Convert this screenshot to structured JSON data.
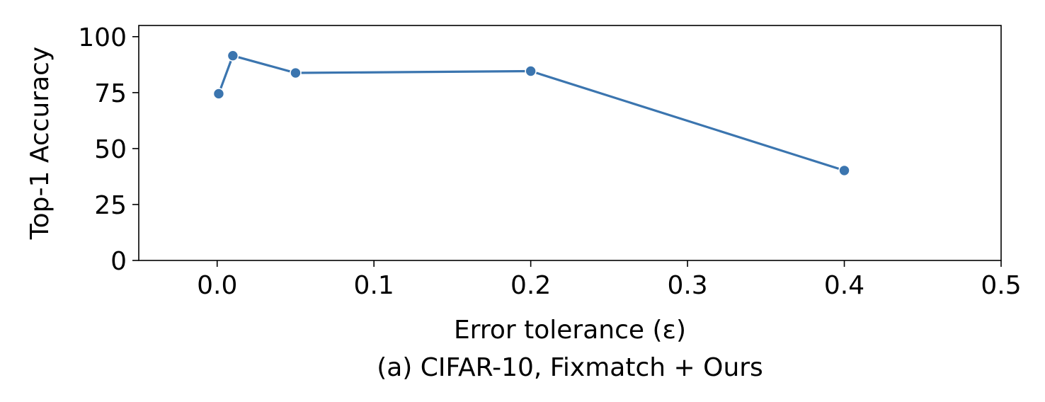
{
  "chart_data": {
    "type": "line",
    "title": "",
    "caption": "(a) CIFAR-10, Fixmatch + Ours",
    "xlabel": "Error tolerance (ε)",
    "ylabel": "Top-1 Accuracy",
    "xlim": [
      -0.05,
      0.5
    ],
    "ylim": [
      0,
      105
    ],
    "xticks": [
      0.0,
      0.1,
      0.2,
      0.3,
      0.4,
      0.5
    ],
    "xtick_labels": [
      "0.0",
      "0.1",
      "0.2",
      "0.3",
      "0.4",
      "0.5"
    ],
    "yticks": [
      0,
      25,
      50,
      75,
      100
    ],
    "ytick_labels": [
      "0",
      "25",
      "50",
      "75",
      "100"
    ],
    "grid": false,
    "legend": "none",
    "series_color": "#3b75af",
    "series": [
      {
        "x": [
          0.001,
          0.01,
          0.05,
          0.2,
          0.4
        ],
        "values": [
          74.5,
          91.5,
          83.8,
          84.6,
          40.2
        ]
      }
    ]
  }
}
